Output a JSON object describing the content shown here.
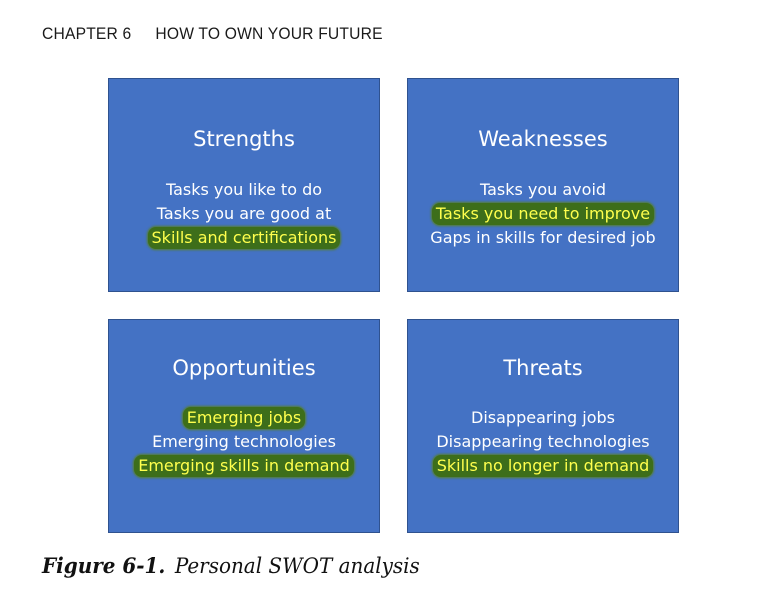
{
  "running_head": {
    "chapter": "CHAPTER 6",
    "title": "HOW TO OWN YOUR FUTURE"
  },
  "swot": {
    "fill_color": "#4472c4",
    "highlight_text_color": "#ffff4d",
    "highlight_glow_color": "#3d6e1a",
    "quadrants": [
      {
        "title": "Strengths",
        "items": [
          {
            "text": "Tasks you like to do",
            "highlighted": false
          },
          {
            "text": "Tasks you are good at",
            "highlighted": false
          },
          {
            "text": "Skills and certifications",
            "highlighted": true
          }
        ]
      },
      {
        "title": "Weaknesses",
        "items": [
          {
            "text": "Tasks you avoid",
            "highlighted": false
          },
          {
            "text": "Tasks you need to improve",
            "highlighted": true
          },
          {
            "text": "Gaps in skills for desired job",
            "highlighted": false
          }
        ]
      },
      {
        "title": "Opportunities",
        "items": [
          {
            "text": "Emerging jobs",
            "highlighted": true
          },
          {
            "text": "Emerging technologies",
            "highlighted": false
          },
          {
            "text": "Emerging skills in demand",
            "highlighted": true
          }
        ]
      },
      {
        "title": "Threats",
        "items": [
          {
            "text": "Disappearing jobs",
            "highlighted": false
          },
          {
            "text": "Disappearing technologies",
            "highlighted": false
          },
          {
            "text": "Skills no longer in demand",
            "highlighted": true
          }
        ]
      }
    ]
  },
  "caption": {
    "label": "Figure 6-1.",
    "text": "Personal SWOT analysis"
  }
}
